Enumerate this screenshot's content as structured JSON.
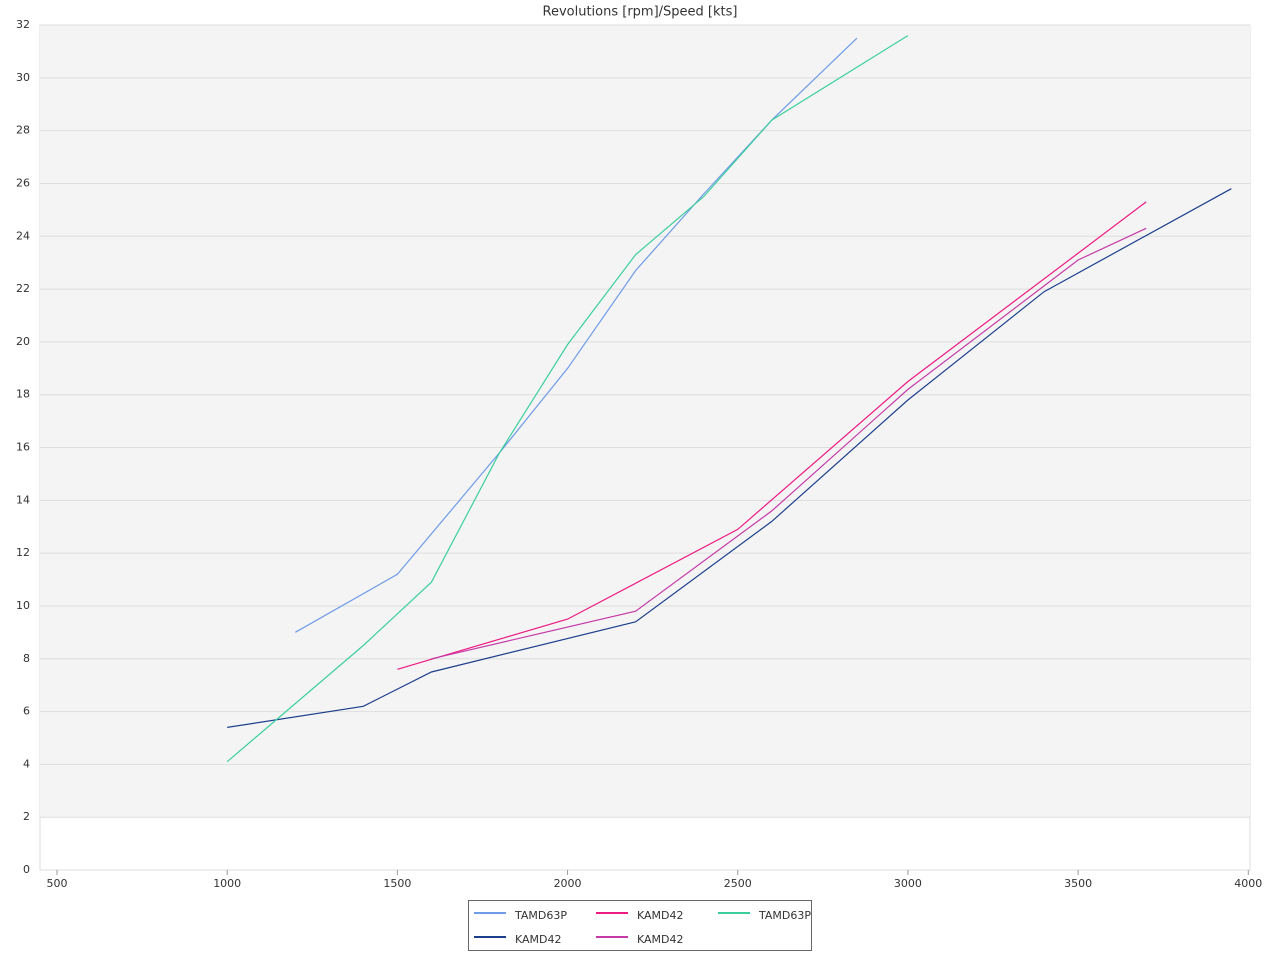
{
  "chart_data": {
    "type": "line",
    "title": "Revolutions [rpm]/Speed [kts]",
    "xlim": [
      450,
      4005
    ],
    "xticks": [
      500,
      1000,
      1500,
      2000,
      2500,
      3000,
      3500,
      4000
    ],
    "ylim": [
      0,
      32
    ],
    "yticks": [
      0,
      2,
      4,
      6,
      8,
      10,
      12,
      14,
      16,
      18,
      20,
      22,
      24,
      26,
      28,
      30,
      32
    ],
    "grid": true,
    "legend": "bottom",
    "series": [
      {
        "name": "TAMD63P",
        "color": "#6f9be8",
        "x": [
          1200,
          1500,
          1800,
          2000,
          2200,
          2400,
          2600,
          2850
        ],
        "values": [
          9.0,
          11.2,
          15.8,
          19.0,
          22.7,
          25.6,
          28.4,
          31.5
        ]
      },
      {
        "name": "KAMD42",
        "color": "#1c3f8c",
        "x": [
          1000,
          1400,
          1600,
          2200,
          2600,
          3000,
          3400,
          3950
        ],
        "values": [
          5.4,
          6.2,
          7.5,
          9.4,
          13.2,
          17.8,
          21.9,
          25.8
        ]
      },
      {
        "name": "KAMD42",
        "color": "#ec1a82",
        "x": [
          1500,
          2000,
          2500,
          3000,
          3700
        ],
        "values": [
          7.6,
          9.5,
          12.9,
          18.5,
          25.3
        ]
      },
      {
        "name": "KAMD42",
        "color": "#c53aa8",
        "x": [
          1600,
          2200,
          2600,
          3000,
          3500,
          3700
        ],
        "values": [
          8.0,
          9.8,
          13.6,
          18.2,
          23.1,
          24.3
        ]
      },
      {
        "name": "TAMD63P",
        "color": "#3ccf9c",
        "x": [
          1000,
          1400,
          1600,
          1800,
          2000,
          2200,
          2400,
          2600,
          3000
        ],
        "values": [
          4.1,
          8.5,
          10.9,
          15.8,
          19.9,
          23.3,
          25.5,
          28.4,
          31.6
        ]
      }
    ]
  }
}
